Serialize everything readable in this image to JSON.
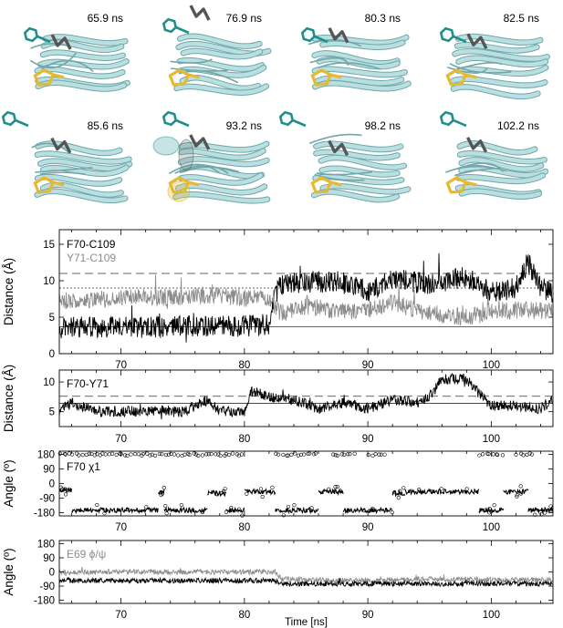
{
  "snapshots": [
    {
      "time": "65.9 ns",
      "pose": 0
    },
    {
      "time": "76.9 ns",
      "pose": 1
    },
    {
      "time": "80.3 ns",
      "pose": 2
    },
    {
      "time": "82.5 ns",
      "pose": 3
    },
    {
      "time": "85.6 ns",
      "pose": 4
    },
    {
      "time": "93.2 ns",
      "pose": 5
    },
    {
      "time": "98.2 ns",
      "pose": 6
    },
    {
      "time": "102.2 ns",
      "pose": 7
    }
  ],
  "colors": {
    "protein": "#b9dfe0",
    "protein_edge": "#6fa7aa",
    "f70": "#1f8f8a",
    "y71": "#555555",
    "disulfide": "#e8b830",
    "black_series": "#000000",
    "gray_series": "#8c8c8c"
  },
  "chart_data": [
    {
      "type": "line",
      "ylabel": "Distance (Å)",
      "xlabel": "",
      "xlim": [
        65,
        105
      ],
      "ylim": [
        0,
        17
      ],
      "yticks": [
        0,
        5,
        10,
        15
      ],
      "xticks": [
        70,
        80,
        90,
        100
      ],
      "reference_lines": [
        {
          "y": 3.7,
          "style": "solid"
        },
        {
          "y": 9,
          "style": "dotted"
        },
        {
          "y": 11,
          "style": "dashed"
        }
      ],
      "series": [
        {
          "name": "F70-C109",
          "color": "#000000",
          "x": [
            65,
            70,
            75,
            80,
            82,
            82.5,
            83,
            85,
            88,
            90,
            92,
            95,
            98,
            100,
            102,
            103,
            104,
            105
          ],
          "y": [
            3.6,
            3.6,
            3.7,
            3.8,
            4.0,
            8.0,
            9.5,
            9.8,
            10.0,
            8.5,
            10.2,
            9.5,
            10.5,
            8.5,
            9.0,
            12.5,
            9.0,
            8.5
          ]
        },
        {
          "name": "Y71-C109",
          "color": "#8c8c8c",
          "x": [
            65,
            70,
            75,
            77,
            80,
            82,
            83,
            85,
            88,
            90,
            92,
            95,
            98,
            100,
            102,
            105
          ],
          "y": [
            7.2,
            7.6,
            7.8,
            8.0,
            7.6,
            7.5,
            5.5,
            6.5,
            5.8,
            6.0,
            7.0,
            5.5,
            5.0,
            5.8,
            6.0,
            5.8
          ]
        }
      ]
    },
    {
      "type": "line",
      "ylabel": "Distance (Å)",
      "xlabel": "",
      "xlim": [
        65,
        105
      ],
      "ylim": [
        2.5,
        12
      ],
      "yticks": [
        5,
        10
      ],
      "xticks": [
        70,
        80,
        90,
        100
      ],
      "reference_lines": [
        {
          "y": 6.4,
          "style": "solid"
        },
        {
          "y": 7.6,
          "style": "dashed"
        }
      ],
      "series": [
        {
          "name": "F70-Y71",
          "color": "#000000",
          "x": [
            65,
            66,
            68,
            70,
            73,
            75,
            77,
            78,
            80,
            80.5,
            82,
            84,
            86,
            88,
            90,
            92,
            94,
            95,
            96,
            98,
            99,
            100,
            102,
            104,
            105
          ],
          "y": [
            5.0,
            6.5,
            5.0,
            5.0,
            5.2,
            5.0,
            7.0,
            5.0,
            5.0,
            8.5,
            7.5,
            7.0,
            5.5,
            6.5,
            5.5,
            7.0,
            6.5,
            7.5,
            10.5,
            10.5,
            8.0,
            6.0,
            6.0,
            5.5,
            7.0
          ]
        }
      ]
    },
    {
      "type": "scatter",
      "ylabel": "Angle (º)",
      "xlabel": "",
      "xlim": [
        65,
        105
      ],
      "ylim": [
        -200,
        200
      ],
      "yticks": [
        -180,
        -90,
        0,
        90,
        180
      ],
      "xticks": [
        70,
        80,
        90,
        100
      ],
      "series": [
        {
          "name": "F70 χ1",
          "color": "#000000",
          "segments": [
            {
              "from": 65,
              "to": 66,
              "y": -40
            },
            {
              "from": 66,
              "to": 73,
              "y": -165
            },
            {
              "from": 73,
              "to": 73.5,
              "y": -50
            },
            {
              "from": 73.5,
              "to": 77,
              "y": -165
            },
            {
              "from": 77,
              "to": 78.5,
              "y": -60
            },
            {
              "from": 78.5,
              "to": 80,
              "y": -165
            },
            {
              "from": 80,
              "to": 82.5,
              "y": -50
            },
            {
              "from": 82.5,
              "to": 86,
              "y": -165
            },
            {
              "from": 86,
              "to": 88,
              "y": -50
            },
            {
              "from": 88,
              "to": 92,
              "y": -165
            },
            {
              "from": 92,
              "to": 93,
              "y": -60
            },
            {
              "from": 93,
              "to": 99,
              "y": -50
            },
            {
              "from": 99,
              "to": 101,
              "y": -165
            },
            {
              "from": 101,
              "to": 103,
              "y": -50
            },
            {
              "from": 103,
              "to": 105,
              "y": -165
            }
          ],
          "upper_bands": [
            [
              65,
              80
            ],
            [
              82.5,
              86
            ],
            [
              87,
              89
            ],
            [
              90,
              91.5
            ],
            [
              99,
              101
            ],
            [
              102,
              103.5
            ]
          ]
        }
      ]
    },
    {
      "type": "line",
      "ylabel": "Angle (º)",
      "xlabel": "Time [ns]",
      "xlim": [
        65,
        105
      ],
      "ylim": [
        -200,
        200
      ],
      "yticks": [
        -180,
        -90,
        0,
        90,
        180
      ],
      "xticks": [
        70,
        80,
        90,
        100
      ],
      "series": [
        {
          "name": "E69 ϕ/ψ",
          "color": "#8c8c8c",
          "x": [
            65,
            70,
            75,
            80,
            82.5,
            83,
            90,
            95,
            100,
            105
          ],
          "y": [
            -5,
            0,
            0,
            0,
            0,
            -45,
            -55,
            -45,
            -50,
            -50
          ]
        },
        {
          "name": "",
          "color": "#000000",
          "x": [
            65,
            70,
            75,
            80,
            82.5,
            83,
            90,
            95,
            100,
            105
          ],
          "y": [
            -55,
            -55,
            -55,
            -55,
            -55,
            -75,
            -75,
            -75,
            -75,
            -75
          ]
        }
      ]
    }
  ]
}
